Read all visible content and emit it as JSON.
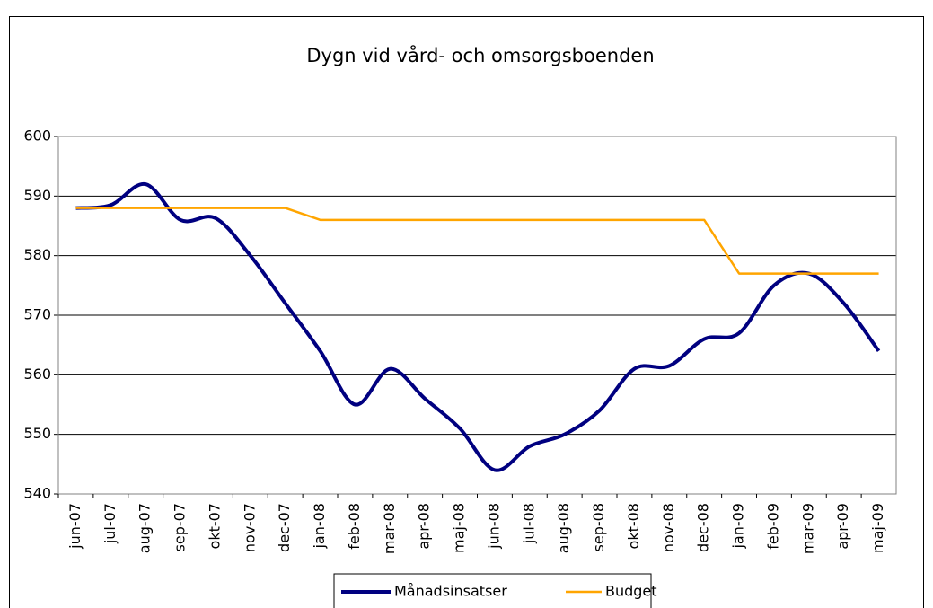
{
  "chart_data": {
    "type": "line",
    "title": "Dygn vid vård- och omsorgsboenden",
    "categories": [
      "jun-07",
      "jul-07",
      "aug-07",
      "sep-07",
      "okt-07",
      "nov-07",
      "dec-07",
      "jan-08",
      "feb-08",
      "mar-08",
      "apr-08",
      "maj-08",
      "jun-08",
      "jul-08",
      "aug-08",
      "sep-08",
      "okt-08",
      "nov-08",
      "dec-08",
      "jan-09",
      "feb-09",
      "mar-09",
      "apr-09",
      "maj-09"
    ],
    "series": [
      {
        "name": "Månadsinsatser",
        "color": "#000080",
        "values": [
          588,
          588.5,
          592,
          586,
          586.3,
          580,
          572,
          564,
          555,
          561,
          556,
          551,
          544,
          548,
          550,
          554,
          561,
          561.5,
          566,
          567,
          575,
          577,
          572,
          564
        ]
      },
      {
        "name": "Budget",
        "color": "#ffa500",
        "values": [
          588,
          588,
          588,
          588,
          588,
          588,
          588,
          586,
          586,
          586,
          586,
          586,
          586,
          586,
          586,
          586,
          586,
          586,
          586,
          577,
          577,
          577,
          577,
          577
        ]
      }
    ],
    "ylim": [
      540,
      600
    ],
    "yticks": [
      540,
      550,
      560,
      570,
      580,
      590,
      600
    ],
    "grid": true,
    "legend": "bottom"
  }
}
